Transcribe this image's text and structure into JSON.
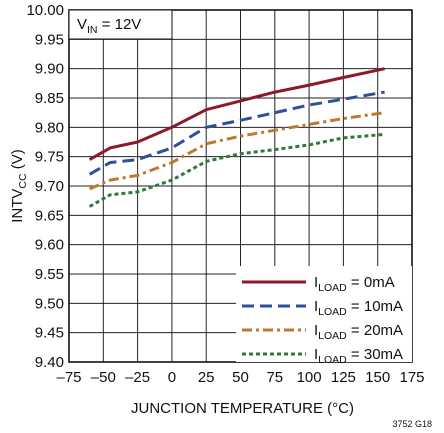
{
  "chart_data": {
    "type": "line",
    "title": "",
    "annotation": {
      "prefix": "V",
      "subscript": "IN",
      "suffix": " = 12V"
    },
    "xlabel": "JUNCTION TEMPERATURE (°C)",
    "ylabel": {
      "prefix": "INTV",
      "subscript": "CC",
      "suffix": " (V)"
    },
    "xlim": [
      -75,
      175
    ],
    "ylim": [
      9.4,
      10.0
    ],
    "x_ticks": [
      "–75",
      "–50",
      "–25",
      "0",
      "25",
      "50",
      "75",
      "100",
      "125",
      "150",
      "175"
    ],
    "y_ticks": [
      "9.40",
      "9.45",
      "9.50",
      "9.55",
      "9.60",
      "9.65",
      "9.70",
      "9.75",
      "9.80",
      "9.85",
      "9.90",
      "9.95",
      "10.00"
    ],
    "grid": true,
    "legend_position": "bottom-right",
    "footnote": "3752 G18",
    "series": [
      {
        "name": "I_LOAD = 0mA",
        "label": {
          "prefix": "I",
          "subscript": "LOAD",
          "suffix": " = 0mA"
        },
        "color": "#8b1a2b",
        "dash": "solid",
        "x": [
          -60,
          -45,
          -25,
          0,
          25,
          50,
          75,
          100,
          125,
          155
        ],
        "y": [
          9.745,
          9.765,
          9.775,
          9.8,
          9.83,
          9.845,
          9.86,
          9.872,
          9.885,
          9.9
        ]
      },
      {
        "name": "I_LOAD = 10mA",
        "label": {
          "prefix": "I",
          "subscript": "LOAD",
          "suffix": " = 10mA"
        },
        "color": "#2e4f9c",
        "dash": "long-dash",
        "x": [
          -60,
          -45,
          -25,
          0,
          25,
          50,
          75,
          100,
          125,
          155
        ],
        "y": [
          9.72,
          9.74,
          9.745,
          9.765,
          9.8,
          9.812,
          9.825,
          9.838,
          9.848,
          9.86
        ]
      },
      {
        "name": "I_LOAD = 20mA",
        "label": {
          "prefix": "I",
          "subscript": "LOAD",
          "suffix": " = 20mA"
        },
        "color": "#c0782f",
        "dash": "dash-dot",
        "x": [
          -60,
          -45,
          -25,
          0,
          25,
          50,
          75,
          100,
          125,
          155
        ],
        "y": [
          9.695,
          9.71,
          9.718,
          9.74,
          9.772,
          9.785,
          9.795,
          9.805,
          9.815,
          9.825
        ]
      },
      {
        "name": "I_LOAD = 30mA",
        "label": {
          "prefix": "I",
          "subscript": "LOAD",
          "suffix": " = 30mA"
        },
        "color": "#2f7a3b",
        "dash": "dotted",
        "x": [
          -60,
          -45,
          -25,
          0,
          25,
          50,
          75,
          100,
          125,
          155
        ],
        "y": [
          9.665,
          9.685,
          9.69,
          9.71,
          9.742,
          9.755,
          9.762,
          9.77,
          9.782,
          9.788
        ]
      }
    ]
  }
}
